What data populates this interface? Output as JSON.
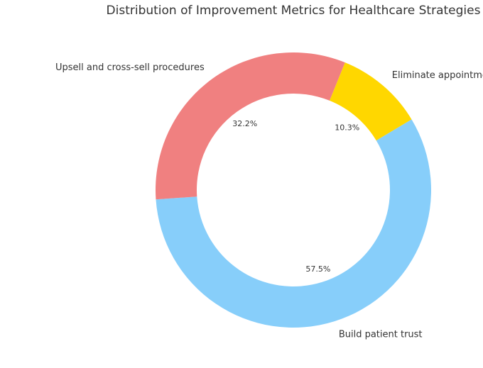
{
  "chart_data": {
    "type": "pie",
    "title": "Distribution of Improvement Metrics for Healthcare Strategies",
    "donut": true,
    "categories": [
      "Build patient trust",
      "Eliminate appointment no-shows",
      "Upsell and cross-sell procedures"
    ],
    "values": [
      57.5,
      10.3,
      32.2
    ],
    "percent_labels": [
      "57.5%",
      "10.3%",
      "32.2%"
    ],
    "colors": [
      "#87CEFA",
      "#FFD700",
      "#F08080"
    ]
  }
}
